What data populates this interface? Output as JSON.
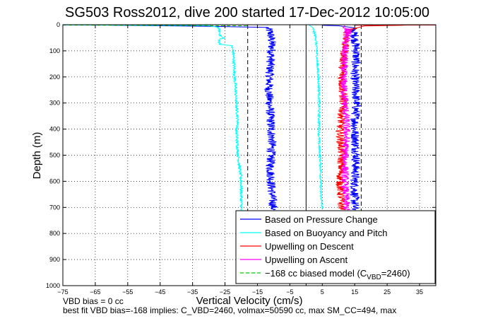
{
  "chart_data": {
    "type": "line",
    "title": "SG503 Ross2012, dive 200 started 17-Dec-2012 10:05:00",
    "xlabel": "Vertical Velocity (cm/s)",
    "ylabel": "Depth (m)",
    "xlim": [
      -75,
      40
    ],
    "ylim": [
      0,
      1000
    ],
    "y_reversed": true,
    "xticks": [
      -75,
      -65,
      -55,
      -45,
      -35,
      -25,
      -15,
      -5,
      5,
      15,
      25,
      35
    ],
    "yticks": [
      0,
      100,
      200,
      300,
      400,
      500,
      600,
      700,
      800,
      900,
      1000
    ],
    "grid": true,
    "legend_position": "bottom-right",
    "legend": [
      {
        "label": "Based on Pressure Change",
        "color": "#0000ff",
        "dash": false
      },
      {
        "label": "Based on Buoyancy and Pitch",
        "color": "#00ffff",
        "dash": false
      },
      {
        "label": "Upwelling on Descent",
        "color": "#ff0000",
        "dash": false
      },
      {
        "label": "Upwelling on Ascent",
        "color": "#ff00ff",
        "dash": false
      },
      {
        "label": "−168 cc biased model (C",
        "sub": "VBD",
        "tail": "=2460)",
        "color": "#00cc00",
        "dash": true
      }
    ],
    "series": [
      {
        "name": "Based on Pressure Change",
        "color": "#0000ff",
        "noise": 1.4,
        "points": [
          [
            -60,
            2
          ],
          [
            -30,
            6
          ],
          [
            -12,
            10
          ],
          [
            -11,
            30
          ],
          [
            -10.5,
            80
          ],
          [
            -11,
            150
          ],
          [
            -11.5,
            250
          ],
          [
            -11,
            350
          ],
          [
            -10.5,
            450
          ],
          [
            -11,
            550
          ],
          [
            -10.5,
            650
          ],
          [
            -10,
            710
          ]
        ]
      },
      {
        "name": "Based on Pressure Change",
        "color": "#0000ff",
        "noise": 1.4,
        "points": [
          [
            5,
            2
          ],
          [
            10,
            4
          ],
          [
            14,
            10
          ],
          [
            15,
            40
          ],
          [
            15.5,
            100
          ],
          [
            15,
            200
          ],
          [
            15.5,
            300
          ],
          [
            15,
            400
          ],
          [
            15.5,
            500
          ],
          [
            15,
            600
          ],
          [
            15,
            710
          ]
        ]
      },
      {
        "name": "Based on Buoyancy and Pitch",
        "color": "#00ffff",
        "noise": 0.4,
        "points": [
          [
            -75,
            1
          ],
          [
            -30,
            3
          ],
          [
            -27,
            10
          ],
          [
            -26.5,
            40
          ],
          [
            -26,
            48
          ],
          [
            -25,
            50
          ],
          [
            -25.5,
            52
          ],
          [
            -26.5,
            55
          ],
          [
            -27,
            60
          ],
          [
            -26.5,
            75
          ],
          [
            -23,
            80
          ],
          [
            -22.5,
            100
          ],
          [
            -22,
            200
          ],
          [
            -21.5,
            300
          ],
          [
            -21,
            380
          ],
          [
            -21.5,
            400
          ],
          [
            -21,
            500
          ],
          [
            -20,
            600
          ],
          [
            -20,
            710
          ]
        ]
      },
      {
        "name": "Based on Buoyancy and Pitch",
        "color": "#00ffff",
        "noise": 0.3,
        "points": [
          [
            1,
            2
          ],
          [
            2,
            10
          ],
          [
            3,
            50
          ],
          [
            3.5,
            150
          ],
          [
            4,
            250
          ],
          [
            4,
            350
          ],
          [
            4,
            450
          ],
          [
            4.5,
            550
          ],
          [
            4.5,
            650
          ],
          [
            5,
            705
          ]
        ]
      },
      {
        "name": "Upwelling on Descent",
        "color": "#ff0000",
        "noise": 1.3,
        "points": [
          [
            30,
            2
          ],
          [
            18,
            5
          ],
          [
            13,
            20
          ],
          [
            12,
            80
          ],
          [
            11,
            200
          ],
          [
            11.5,
            300
          ],
          [
            10.5,
            400
          ],
          [
            11,
            500
          ],
          [
            10.5,
            600
          ],
          [
            11,
            710
          ]
        ]
      },
      {
        "name": "Upwelling on Ascent",
        "color": "#ff00ff",
        "noise": 1.2,
        "points": [
          [
            12,
            2
          ],
          [
            13,
            20
          ],
          [
            12,
            80
          ],
          [
            11.5,
            200
          ],
          [
            12,
            300
          ],
          [
            12.5,
            400
          ],
          [
            12,
            500
          ],
          [
            12,
            600
          ],
          [
            12.5,
            710
          ]
        ]
      }
    ],
    "red_line_top": [
      [
        15,
        2
      ],
      [
        40,
        1
      ]
    ],
    "green_dashed": [
      [
        -75,
        1
      ],
      [
        -18,
        4
      ],
      [
        -18,
        6
      ]
    ],
    "dashed_verticals": [
      -18,
      17
    ],
    "solid_vertical": 0
  },
  "footer": {
    "line1": "VBD bias = 0 cc",
    "line2": "best fit VBD bias=-168 implies: C_VBD=2460, volmax=50590 cc, max SM_CC=494, max"
  }
}
